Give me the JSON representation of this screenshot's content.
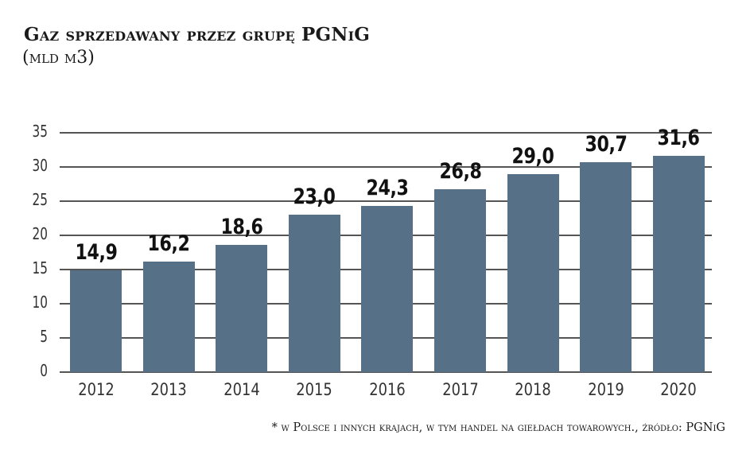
{
  "title": "Gaz sprzedawany przez grupę PGNiG",
  "subtitle": "(mld m3)",
  "footnote": "* w Polsce i innych krajach, w tym handel na giełdach towarowych., źródło: PGNiG",
  "colors": {
    "bar": "#557087",
    "grid": "#555555",
    "text": "#1a1a1a"
  },
  "chart_data": {
    "type": "bar",
    "title": "Gaz sprzedawany przez grupę PGNiG",
    "subtitle": "(mld m3)",
    "xlabel": "",
    "ylabel": "mld m3",
    "categories": [
      "2012",
      "2013",
      "2014",
      "2015",
      "2016",
      "2017",
      "2018",
      "2019",
      "2020"
    ],
    "values": [
      14.9,
      16.2,
      18.6,
      23.0,
      24.3,
      26.8,
      29.0,
      30.7,
      31.6
    ],
    "value_labels": [
      "14,9",
      "16,2",
      "18,6",
      "23,0",
      "24,3",
      "26,8",
      "29,0",
      "30,7",
      "31,6"
    ],
    "ylim": [
      0,
      35
    ],
    "yticks": [
      0,
      5,
      10,
      15,
      20,
      25,
      30,
      35
    ],
    "grid": true,
    "legend": null,
    "annotations": [
      "* w Polsce i innych krajach, w tym handel na giełdach towarowych., źródło: PGNiG"
    ]
  }
}
